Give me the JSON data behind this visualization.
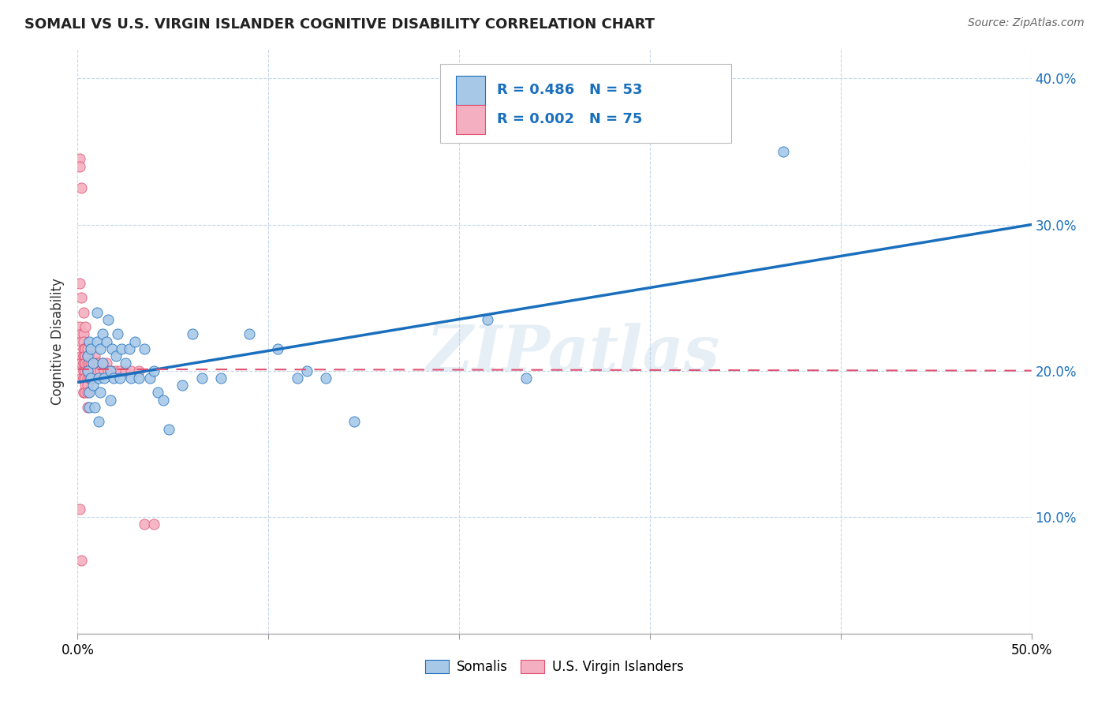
{
  "title": "SOMALI VS U.S. VIRGIN ISLANDER COGNITIVE DISABILITY CORRELATION CHART",
  "source": "Source: ZipAtlas.com",
  "ylabel": "Cognitive Disability",
  "xlim": [
    0.0,
    0.5
  ],
  "ylim": [
    0.02,
    0.42
  ],
  "somali_R": 0.486,
  "somali_N": 53,
  "virgin_R": 0.002,
  "virgin_N": 75,
  "somali_color": "#a8c8e8",
  "somali_line_color": "#1a6fbd",
  "virgin_color": "#f4b0c0",
  "virgin_line_color": "#e05070",
  "watermark": "ZIPatlas",
  "somali_line_x0": 0.0,
  "somali_line_y0": 0.192,
  "somali_line_x1": 0.5,
  "somali_line_y1": 0.3,
  "virgin_line_x0": 0.0,
  "virgin_line_y0": 0.201,
  "virgin_line_x1": 0.5,
  "virgin_line_y1": 0.2,
  "somali_x": [
    0.005,
    0.005,
    0.006,
    0.006,
    0.006,
    0.007,
    0.007,
    0.008,
    0.008,
    0.009,
    0.01,
    0.01,
    0.011,
    0.011,
    0.012,
    0.012,
    0.013,
    0.013,
    0.014,
    0.015,
    0.016,
    0.017,
    0.017,
    0.018,
    0.019,
    0.02,
    0.021,
    0.022,
    0.023,
    0.025,
    0.027,
    0.028,
    0.03,
    0.032,
    0.035,
    0.038,
    0.04,
    0.042,
    0.045,
    0.048,
    0.055,
    0.06,
    0.065,
    0.075,
    0.09,
    0.105,
    0.115,
    0.12,
    0.13,
    0.145,
    0.215,
    0.235,
    0.37
  ],
  "somali_y": [
    0.2,
    0.21,
    0.185,
    0.22,
    0.175,
    0.195,
    0.215,
    0.205,
    0.19,
    0.175,
    0.24,
    0.22,
    0.195,
    0.165,
    0.215,
    0.185,
    0.225,
    0.205,
    0.195,
    0.22,
    0.235,
    0.2,
    0.18,
    0.215,
    0.195,
    0.21,
    0.225,
    0.195,
    0.215,
    0.205,
    0.215,
    0.195,
    0.22,
    0.195,
    0.215,
    0.195,
    0.2,
    0.185,
    0.18,
    0.16,
    0.19,
    0.225,
    0.195,
    0.195,
    0.225,
    0.215,
    0.195,
    0.2,
    0.195,
    0.165,
    0.235,
    0.195,
    0.35
  ],
  "virgin_x": [
    0.001,
    0.001,
    0.001,
    0.001,
    0.002,
    0.002,
    0.002,
    0.002,
    0.002,
    0.002,
    0.002,
    0.003,
    0.003,
    0.003,
    0.003,
    0.003,
    0.003,
    0.003,
    0.003,
    0.003,
    0.003,
    0.003,
    0.003,
    0.003,
    0.003,
    0.003,
    0.004,
    0.004,
    0.004,
    0.004,
    0.004,
    0.004,
    0.004,
    0.004,
    0.004,
    0.004,
    0.004,
    0.005,
    0.005,
    0.005,
    0.005,
    0.005,
    0.005,
    0.005,
    0.005,
    0.006,
    0.006,
    0.006,
    0.006,
    0.007,
    0.007,
    0.007,
    0.008,
    0.008,
    0.008,
    0.009,
    0.009,
    0.01,
    0.01,
    0.011,
    0.012,
    0.013,
    0.014,
    0.015,
    0.016,
    0.018,
    0.02,
    0.022,
    0.025,
    0.028,
    0.032,
    0.035,
    0.04,
    0.001,
    0.002
  ],
  "virgin_y": [
    0.345,
    0.26,
    0.23,
    0.34,
    0.325,
    0.25,
    0.225,
    0.22,
    0.21,
    0.205,
    0.195,
    0.24,
    0.225,
    0.215,
    0.21,
    0.205,
    0.2,
    0.195,
    0.185,
    0.22,
    0.215,
    0.21,
    0.205,
    0.2,
    0.195,
    0.185,
    0.23,
    0.215,
    0.21,
    0.205,
    0.2,
    0.195,
    0.19,
    0.215,
    0.21,
    0.205,
    0.185,
    0.21,
    0.205,
    0.2,
    0.195,
    0.19,
    0.185,
    0.215,
    0.175,
    0.21,
    0.205,
    0.2,
    0.195,
    0.205,
    0.2,
    0.195,
    0.205,
    0.2,
    0.195,
    0.21,
    0.2,
    0.205,
    0.2,
    0.205,
    0.2,
    0.205,
    0.2,
    0.205,
    0.2,
    0.2,
    0.2,
    0.2,
    0.2,
    0.2,
    0.2,
    0.095,
    0.095,
    0.105,
    0.07
  ]
}
